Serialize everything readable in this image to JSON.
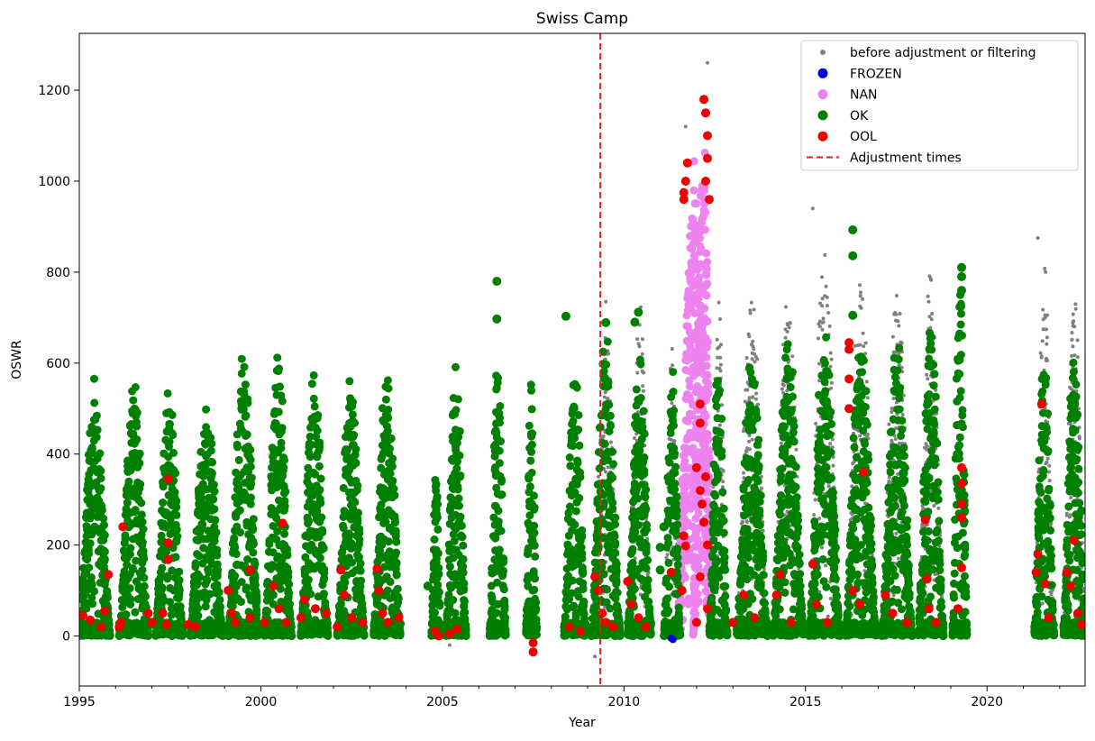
{
  "chart_data": {
    "type": "scatter",
    "title": "Swiss Camp",
    "xlabel": "Year",
    "ylabel": "OSWR",
    "xlim": [
      1995,
      2022.7
    ],
    "ylim": [
      -110,
      1325
    ],
    "x_ticks": [
      1995,
      2000,
      2005,
      2010,
      2015,
      2020
    ],
    "y_ticks": [
      0,
      200,
      400,
      600,
      800,
      1000,
      1200
    ],
    "grid": false,
    "legend_position": "top-right",
    "adjustment_times": [
      2009.35
    ],
    "series": [
      {
        "name": "before adjustment or filtering",
        "color": "#808080",
        "marker": "small-dot"
      },
      {
        "name": "FROZEN",
        "color": "#0000dd",
        "marker": "circle"
      },
      {
        "name": "NAN",
        "color": "#ee82ee",
        "marker": "circle"
      },
      {
        "name": "OK",
        "color": "#008000",
        "marker": "circle"
      },
      {
        "name": "OOL",
        "color": "#ee0000",
        "marker": "circle"
      },
      {
        "name": "Adjustment times",
        "color": "#dd2222",
        "marker": "dashed-line"
      }
    ],
    "seasons": [
      {
        "start": 1995.0,
        "end": 1995.85,
        "ok_peak": 580,
        "gray_peak": 580
      },
      {
        "start": 1996.1,
        "end": 1996.9,
        "ok_peak": 605,
        "gray_peak": 605
      },
      {
        "start": 1997.1,
        "end": 1997.85,
        "ok_peak": 585,
        "gray_peak": 585
      },
      {
        "start": 1998.05,
        "end": 1998.95,
        "ok_peak": 540,
        "gray_peak": 540
      },
      {
        "start": 1999.1,
        "end": 1999.95,
        "ok_peak": 665,
        "gray_peak": 665
      },
      {
        "start": 2000.1,
        "end": 2000.85,
        "ok_peak": 665,
        "gray_peak": 665
      },
      {
        "start": 2001.1,
        "end": 2001.85,
        "ok_peak": 625,
        "gray_peak": 625
      },
      {
        "start": 2002.1,
        "end": 2002.85,
        "ok_peak": 605,
        "gray_peak": 605
      },
      {
        "start": 2003.1,
        "end": 2003.85,
        "ok_peak": 630,
        "gray_peak": 630
      },
      {
        "start": 2004.7,
        "end": 2004.95,
        "ok_peak": 390,
        "gray_peak": 390
      },
      {
        "start": 2005.1,
        "end": 2005.65,
        "ok_peak": 640,
        "gray_peak": 640
      },
      {
        "start": 2006.3,
        "end": 2006.75,
        "ok_peak": 660,
        "gray_peak": 660
      },
      {
        "start": 2007.3,
        "end": 2007.6,
        "ok_peak": 610,
        "gray_peak": 610
      },
      {
        "start": 2008.35,
        "end": 2008.95,
        "ok_peak": 640,
        "gray_peak": 640
      },
      {
        "start": 2009.1,
        "end": 2009.9,
        "ok_peak": 690,
        "gray_peak": 740
      },
      {
        "start": 2010.1,
        "end": 2010.75,
        "ok_peak": 650,
        "gray_peak": 765
      },
      {
        "start": 2011.1,
        "end": 2011.55,
        "ok_peak": 630,
        "gray_peak": 660
      },
      {
        "start": 2012.35,
        "end": 2012.85,
        "ok_peak": 635,
        "gray_peak": 790
      },
      {
        "start": 2013.1,
        "end": 2013.95,
        "ok_peak": 655,
        "gray_peak": 825
      },
      {
        "start": 2014.1,
        "end": 2014.95,
        "ok_peak": 680,
        "gray_peak": 805
      },
      {
        "start": 2015.1,
        "end": 2015.95,
        "ok_peak": 715,
        "gray_peak": 940
      },
      {
        "start": 2016.1,
        "end": 2016.95,
        "ok_peak": 710,
        "gray_peak": 840
      },
      {
        "start": 2017.1,
        "end": 2017.95,
        "ok_peak": 675,
        "gray_peak": 845
      },
      {
        "start": 2018.1,
        "end": 2018.8,
        "ok_peak": 740,
        "gray_peak": 850
      },
      {
        "start": 2019.05,
        "end": 2019.45,
        "ok_peak": 870,
        "gray_peak": 870
      },
      {
        "start": 2021.3,
        "end": 2021.85,
        "ok_peak": 650,
        "gray_peak": 870
      },
      {
        "start": 2022.1,
        "end": 2022.7,
        "ok_peak": 690,
        "gray_peak": 835
      }
    ],
    "nan_spans": [
      {
        "start": 2011.45,
        "end": 2012.45,
        "peak": 1050
      },
      {
        "start": 2011.9,
        "end": 2012.45,
        "peak": 1180
      }
    ],
    "gray_spikes": [
      {
        "x": 2012.3,
        "y": 1260
      },
      {
        "x": 2011.7,
        "y": 1120
      },
      {
        "x": 2009.5,
        "y": 735
      },
      {
        "x": 2009.2,
        "y": -45
      },
      {
        "x": 2005.2,
        "y": -20
      },
      {
        "x": 2015.2,
        "y": 940
      },
      {
        "x": 2021.4,
        "y": 875
      }
    ],
    "ok_outliers": [
      {
        "x": 2006.5,
        "y": 780
      },
      {
        "x": 2006.5,
        "y": 697
      },
      {
        "x": 2008.4,
        "y": 703
      },
      {
        "x": 2009.5,
        "y": 689
      },
      {
        "x": 2010.4,
        "y": 712
      },
      {
        "x": 2010.3,
        "y": 690
      },
      {
        "x": 2016.3,
        "y": 893
      },
      {
        "x": 2016.3,
        "y": 836
      },
      {
        "x": 2016.3,
        "y": 705
      },
      {
        "x": 2019.3,
        "y": 810
      },
      {
        "x": 2019.3,
        "y": 790
      },
      {
        "x": 2019.3,
        "y": 760
      },
      {
        "x": 2004.6,
        "y": 110
      },
      {
        "x": 2011.0,
        "y": 195
      },
      {
        "x": 2011.0,
        "y": 145
      },
      {
        "x": 2011.1,
        "y": 240
      }
    ],
    "ool_points": [
      {
        "x": 1995.1,
        "y": 45
      },
      {
        "x": 1995.3,
        "y": 35
      },
      {
        "x": 1995.6,
        "y": 20
      },
      {
        "x": 1995.7,
        "y": 55
      },
      {
        "x": 1995.8,
        "y": 135
      },
      {
        "x": 1996.2,
        "y": 240
      },
      {
        "x": 1996.1,
        "y": 20
      },
      {
        "x": 1996.15,
        "y": 30
      },
      {
        "x": 1996.9,
        "y": 50
      },
      {
        "x": 1997.0,
        "y": 30
      },
      {
        "x": 1997.3,
        "y": 50
      },
      {
        "x": 1997.4,
        "y": 25
      },
      {
        "x": 1997.45,
        "y": 345
      },
      {
        "x": 1997.45,
        "y": 205
      },
      {
        "x": 1997.45,
        "y": 168
      },
      {
        "x": 1998.0,
        "y": 25
      },
      {
        "x": 1998.2,
        "y": 20
      },
      {
        "x": 1999.1,
        "y": 100
      },
      {
        "x": 1999.2,
        "y": 50
      },
      {
        "x": 1999.3,
        "y": 30
      },
      {
        "x": 1999.7,
        "y": 145
      },
      {
        "x": 1999.7,
        "y": 40
      },
      {
        "x": 2000.1,
        "y": 30
      },
      {
        "x": 2000.35,
        "y": 110
      },
      {
        "x": 2000.5,
        "y": 60
      },
      {
        "x": 2000.6,
        "y": 248
      },
      {
        "x": 2000.7,
        "y": 30
      },
      {
        "x": 2001.1,
        "y": 40
      },
      {
        "x": 2001.2,
        "y": 80
      },
      {
        "x": 2001.5,
        "y": 60
      },
      {
        "x": 2001.8,
        "y": 50
      },
      {
        "x": 2002.1,
        "y": 20
      },
      {
        "x": 2002.2,
        "y": 145
      },
      {
        "x": 2002.3,
        "y": 90
      },
      {
        "x": 2002.5,
        "y": 40
      },
      {
        "x": 2002.8,
        "y": 30
      },
      {
        "x": 2003.2,
        "y": 148
      },
      {
        "x": 2003.25,
        "y": 100
      },
      {
        "x": 2003.35,
        "y": 50
      },
      {
        "x": 2003.5,
        "y": 30
      },
      {
        "x": 2003.8,
        "y": 40
      },
      {
        "x": 2004.8,
        "y": 10
      },
      {
        "x": 2004.9,
        "y": 0
      },
      {
        "x": 2005.2,
        "y": 5
      },
      {
        "x": 2005.4,
        "y": 15
      },
      {
        "x": 2007.5,
        "y": -15
      },
      {
        "x": 2007.5,
        "y": -35
      },
      {
        "x": 2008.5,
        "y": 20
      },
      {
        "x": 2008.8,
        "y": 10
      },
      {
        "x": 2009.2,
        "y": 130
      },
      {
        "x": 2009.3,
        "y": 100
      },
      {
        "x": 2009.4,
        "y": 50
      },
      {
        "x": 2009.5,
        "y": 30
      },
      {
        "x": 2009.7,
        "y": 20
      },
      {
        "x": 2010.1,
        "y": 120
      },
      {
        "x": 2010.2,
        "y": 70
      },
      {
        "x": 2010.4,
        "y": 40
      },
      {
        "x": 2010.6,
        "y": 20
      },
      {
        "x": 2011.3,
        "y": 140
      },
      {
        "x": 2011.6,
        "y": 100
      },
      {
        "x": 2011.65,
        "y": 220
      },
      {
        "x": 2011.7,
        "y": 198
      },
      {
        "x": 2011.65,
        "y": 960
      },
      {
        "x": 2011.7,
        "y": 1000
      },
      {
        "x": 2011.75,
        "y": 1040
      },
      {
        "x": 2011.65,
        "y": 975
      },
      {
        "x": 2012.2,
        "y": 1180
      },
      {
        "x": 2012.25,
        "y": 1150
      },
      {
        "x": 2012.3,
        "y": 1100
      },
      {
        "x": 2012.3,
        "y": 1050
      },
      {
        "x": 2012.25,
        "y": 1000
      },
      {
        "x": 2012.35,
        "y": 960
      },
      {
        "x": 2012.1,
        "y": 510
      },
      {
        "x": 2012.1,
        "y": 468
      },
      {
        "x": 2012.0,
        "y": 370
      },
      {
        "x": 2012.25,
        "y": 350
      },
      {
        "x": 2012.1,
        "y": 320
      },
      {
        "x": 2012.15,
        "y": 290
      },
      {
        "x": 2012.2,
        "y": 250
      },
      {
        "x": 2012.3,
        "y": 200
      },
      {
        "x": 2012.1,
        "y": 130
      },
      {
        "x": 2012.3,
        "y": 60
      },
      {
        "x": 2012.0,
        "y": 30
      },
      {
        "x": 2013.0,
        "y": 30
      },
      {
        "x": 2013.3,
        "y": 90
      },
      {
        "x": 2013.6,
        "y": 40
      },
      {
        "x": 2014.2,
        "y": 90
      },
      {
        "x": 2014.3,
        "y": 135
      },
      {
        "x": 2014.6,
        "y": 30
      },
      {
        "x": 2015.2,
        "y": 158
      },
      {
        "x": 2015.3,
        "y": 70
      },
      {
        "x": 2015.6,
        "y": 30
      },
      {
        "x": 2016.2,
        "y": 645
      },
      {
        "x": 2016.2,
        "y": 630
      },
      {
        "x": 2016.2,
        "y": 565
      },
      {
        "x": 2016.2,
        "y": 500
      },
      {
        "x": 2016.3,
        "y": 100
      },
      {
        "x": 2016.6,
        "y": 360
      },
      {
        "x": 2016.5,
        "y": 70
      },
      {
        "x": 2017.2,
        "y": 90
      },
      {
        "x": 2017.4,
        "y": 50
      },
      {
        "x": 2017.8,
        "y": 30
      },
      {
        "x": 2018.3,
        "y": 255
      },
      {
        "x": 2018.35,
        "y": 125
      },
      {
        "x": 2018.4,
        "y": 60
      },
      {
        "x": 2018.6,
        "y": 30
      },
      {
        "x": 2019.3,
        "y": 370
      },
      {
        "x": 2019.3,
        "y": 335
      },
      {
        "x": 2019.3,
        "y": 290
      },
      {
        "x": 2019.3,
        "y": 260
      },
      {
        "x": 2019.3,
        "y": 150
      },
      {
        "x": 2019.2,
        "y": 60
      },
      {
        "x": 2021.4,
        "y": 180
      },
      {
        "x": 2021.35,
        "y": 140
      },
      {
        "x": 2021.5,
        "y": 510
      },
      {
        "x": 2021.6,
        "y": 115
      },
      {
        "x": 2021.7,
        "y": 40
      },
      {
        "x": 2022.2,
        "y": 140
      },
      {
        "x": 2022.3,
        "y": 110
      },
      {
        "x": 2022.4,
        "y": 210
      },
      {
        "x": 2022.5,
        "y": 50
      },
      {
        "x": 2022.6,
        "y": 25
      }
    ],
    "frozen_points": [
      {
        "x": 2011.3,
        "y": -5
      },
      {
        "x": 2011.35,
        "y": -8
      }
    ]
  }
}
